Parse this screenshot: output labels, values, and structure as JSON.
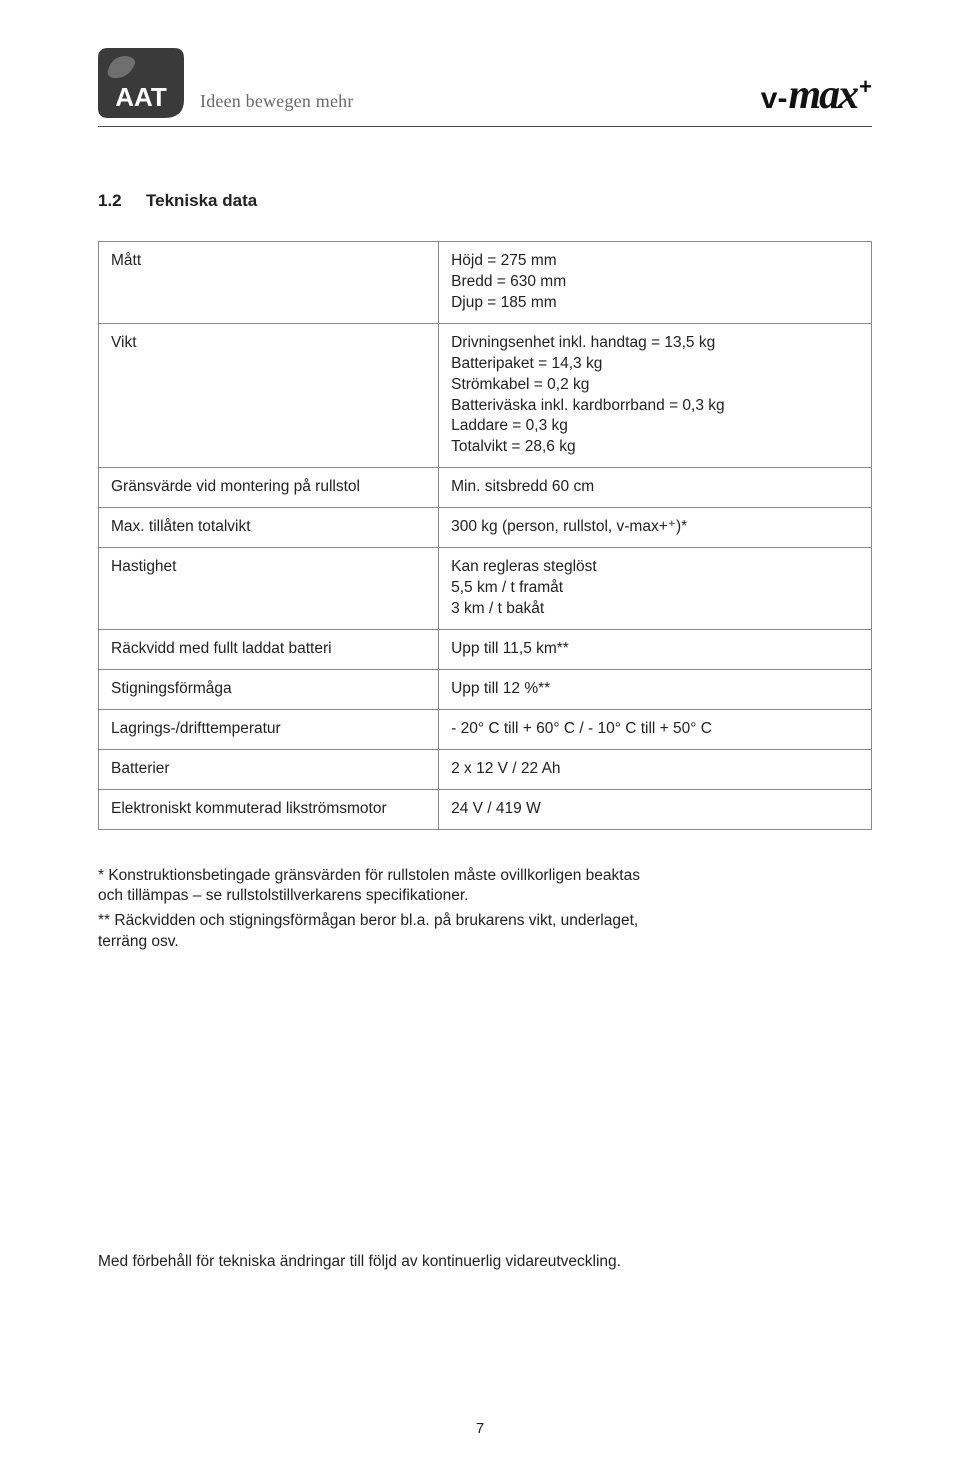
{
  "header": {
    "logo_text": "AAT",
    "tagline": "Ideen bewegen mehr",
    "brand_v": "v",
    "brand_dash": "-",
    "brand_max": "max",
    "brand_plus": "+"
  },
  "section": {
    "number": "1.2",
    "title": "Tekniska data"
  },
  "table": {
    "rows": [
      {
        "label": "Mått",
        "value": "Höjd = 275 mm\nBredd = 630 mm\nDjup = 185 mm"
      },
      {
        "label": "Vikt",
        "value": "Drivningsenhet inkl. handtag = 13,5 kg\nBatteripaket = 14,3 kg\nStrömkabel = 0,2 kg\nBatteriväska inkl. kardborrband = 0,3 kg\nLaddare = 0,3 kg\nTotalvikt = 28,6 kg"
      },
      {
        "label": "Gränsvärde vid montering på rullstol",
        "value": "Min. sitsbredd 60 cm"
      },
      {
        "label": "Max. tillåten totalvikt",
        "value": "300 kg (person, rullstol, v-max+⁺)*"
      },
      {
        "label": "Hastighet",
        "value": "Kan regleras steglöst\n5,5 km / t framåt\n3 km / t bakåt"
      },
      {
        "label": "Räckvidd med fullt laddat batteri",
        "value": "Upp till 11,5 km**"
      },
      {
        "label": "Stigningsförmåga",
        "value": "Upp till 12 %**"
      },
      {
        "label": "Lagrings-/drifttemperatur",
        "value": "- 20° C till + 60° C / - 10° C till + 50° C"
      },
      {
        "label": "Batterier",
        "value": "2 x 12 V / 22 Ah"
      },
      {
        "label": "Elektroniskt kommuterad likströmsmotor",
        "value": "24 V / 419 W"
      }
    ]
  },
  "footnotes": {
    "note1": "* Konstruktionsbetingade gränsvärden för rullstolen måste ovillkorligen beaktas och tillämpas – se rullstolstillverkarens specifikationer.",
    "note2": "** Räckvidden och stigningsförmågan beror bl.a. på brukarens vikt, underlaget, terräng osv."
  },
  "reservation": "Med förbehåll för tekniska ändringar till följd av kontinuerlig vidareutveckling.",
  "page_number": "7",
  "colors": {
    "text": "#222222",
    "rule": "#4b4b4b",
    "border": "#8a8a8a",
    "tagline": "#6a6a6a",
    "logo_dark": "#3a3a3a",
    "logo_leaf": "#6f6f6f"
  }
}
